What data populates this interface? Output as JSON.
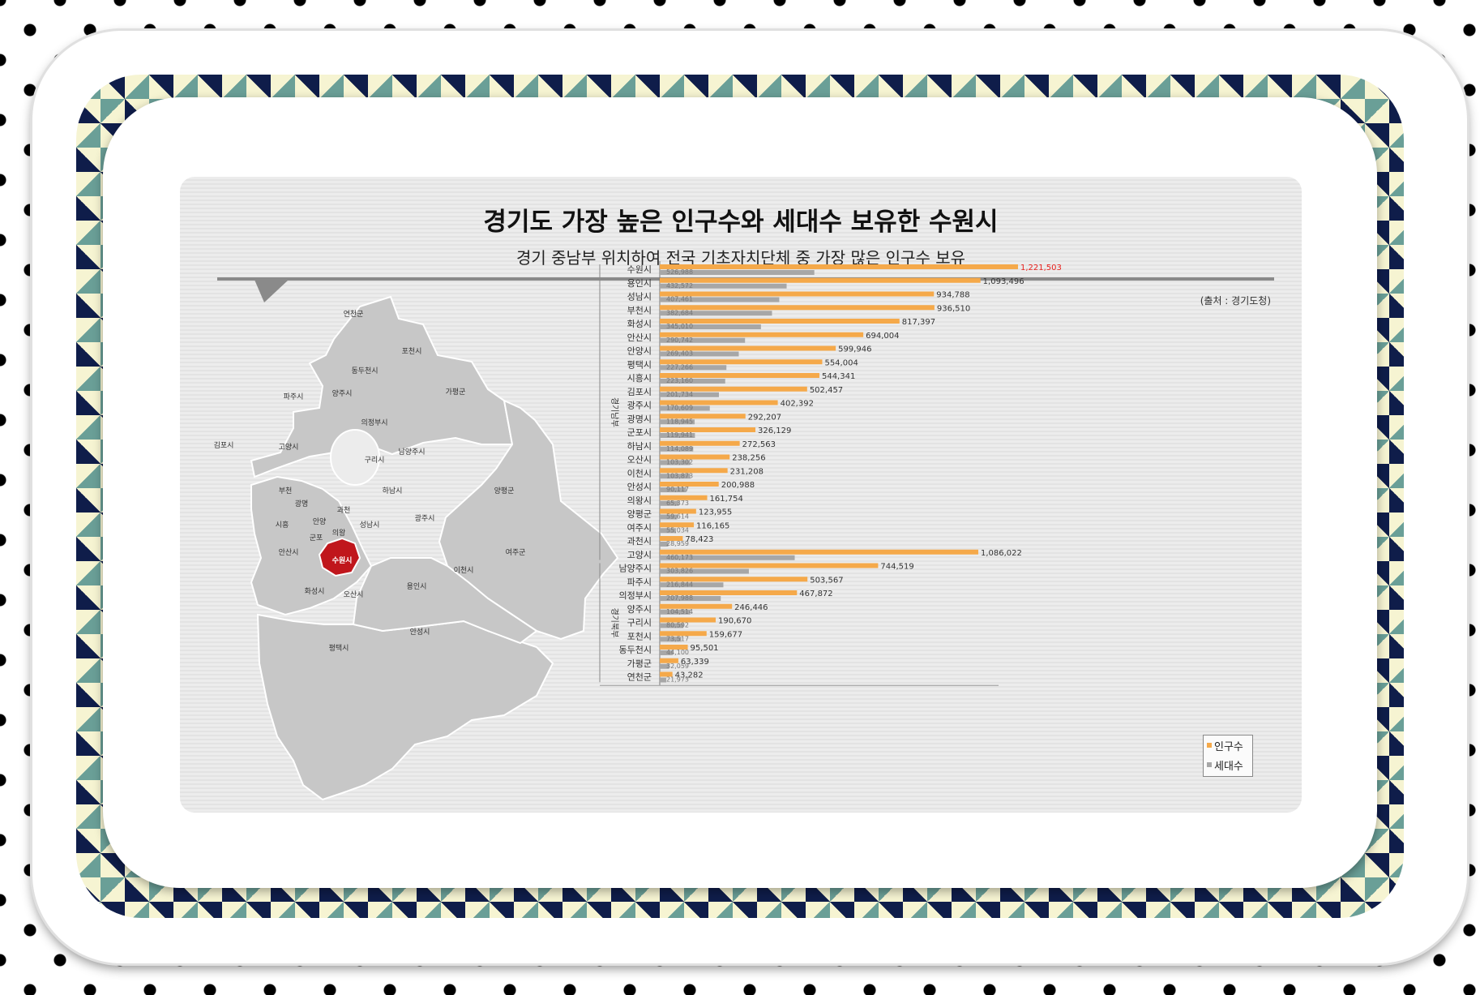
{
  "header": {
    "title": "경기도 가장 높은 인구수와 세대수 보유한 수원시",
    "subtitle": "경기 중남부 위치하여 전국 기초자치단체 중 가장 많은 인구수 보유",
    "source": "(출처 : 경기도청)"
  },
  "colors": {
    "population": "#f5a94a",
    "households": "#a7a7a7",
    "highlight_value": "#e8201c",
    "highlight_region": "#c0161c",
    "map_region": "#c7c7c7"
  },
  "map": {
    "highlighted": "수원시",
    "labels": [
      "연천군",
      "포천시",
      "동두천시",
      "가평군",
      "파주시",
      "양주시",
      "의정부시",
      "김포시",
      "고양시",
      "구리시",
      "남양주시",
      "부천",
      "광명",
      "과천",
      "하남시",
      "양평군",
      "시흥",
      "안양",
      "의왕",
      "성남시",
      "광주시",
      "군포",
      "안산시",
      "수원시",
      "여주군",
      "이천시",
      "화성시",
      "오산시",
      "용인시",
      "안성시",
      "평택시"
    ]
  },
  "chart_data": {
    "type": "bar",
    "orientation": "horizontal",
    "title": "",
    "xlabel": "",
    "ylabel": "",
    "xlim": [
      0,
      1221503
    ],
    "groups": [
      {
        "name": "경기남부",
        "start": 0,
        "end": 21
      },
      {
        "name": "경기북부",
        "start": 22,
        "end": 30
      }
    ],
    "categories": [
      "수원시",
      "용인시",
      "성남시",
      "부천시",
      "화성시",
      "안산시",
      "안양시",
      "평택시",
      "시흥시",
      "김포시",
      "광주시",
      "광명시",
      "군포시",
      "하남시",
      "오산시",
      "이천시",
      "안성시",
      "의왕시",
      "양평군",
      "여주시",
      "과천시",
      "고양시",
      "남양주시",
      "파주시",
      "의정부시",
      "양주시",
      "구리시",
      "포천시",
      "동두천시",
      "가평군",
      "연천군"
    ],
    "series": [
      {
        "name": "인구수",
        "color": "#f5a94a",
        "values": [
          1221503,
          1093496,
          934788,
          936510,
          817397,
          694004,
          599946,
          554004,
          544341,
          502457,
          402392,
          292207,
          326129,
          272563,
          238256,
          231208,
          200988,
          161754,
          123955,
          116165,
          78423,
          1086022,
          744519,
          503567,
          467872,
          246446,
          190670,
          159677,
          95501,
          63339,
          43282
        ],
        "labels": [
          "1,221,503",
          "1,093,496",
          "934,788",
          "936,510",
          "817,397",
          "694,004",
          "599,946",
          "554,004",
          "544,341",
          "502,457",
          "402,392",
          "292,207",
          "326,129",
          "272,563",
          "238,256",
          "231,208",
          "200,988",
          "161,754",
          "123,955",
          "116,165",
          "78,423",
          "1,086,022",
          "744,519",
          "503,567",
          "467,872",
          "246,446",
          "190,670",
          "159,677",
          "95,501",
          "63,339",
          "43,282"
        ]
      },
      {
        "name": "세대수",
        "color": "#a7a7a7",
        "values": [
          526988,
          432572,
          407461,
          382684,
          345010,
          290742,
          269403,
          227266,
          223160,
          201734,
          170609,
          118945,
          119941,
          114089,
          103302,
          103873,
          90117,
          65373,
          59614,
          55034,
          28959,
          460173,
          303826,
          216844,
          207988,
          104514,
          80592,
          73517,
          44100,
          32059,
          21973
        ],
        "labels": [
          "526,988",
          "432,572",
          "407,461",
          "382,684",
          "345,010",
          "290,742",
          "269,403",
          "227,266",
          "223,160",
          "201,734",
          "170,609",
          "118,945",
          "119,941",
          "114,089",
          "103,302",
          "103,873",
          "90,117",
          "65,373",
          "59,614",
          "55,034",
          "28,959",
          "460,173",
          "303,826",
          "216,844",
          "207,988",
          "104,514",
          "80,592",
          "73,517",
          "44,100",
          "32,059",
          "21,973"
        ]
      }
    ]
  }
}
